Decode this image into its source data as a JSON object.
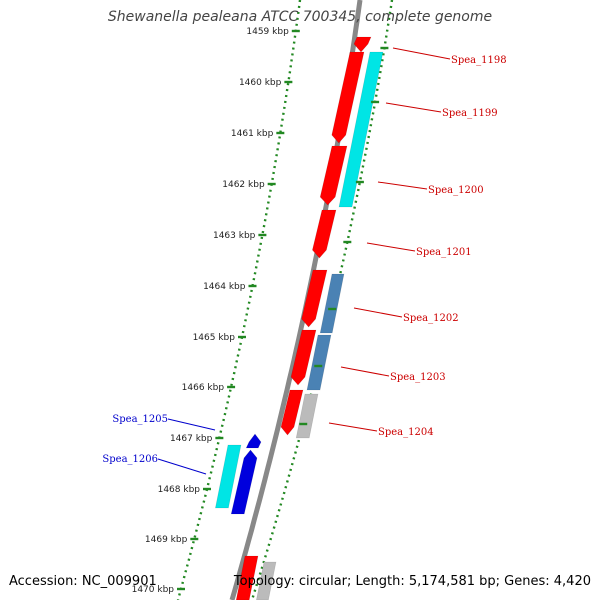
{
  "title": "Shewanella pealeana ATCC 700345, complete genome",
  "footer": {
    "accession": "Accession: NC_009901",
    "summary": "Topology: circular; Length: 5,174,581 bp; Genes: 4,420"
  },
  "colors": {
    "forward_gene": "#ff0000",
    "forward_label": "#cc0000",
    "reverse_gene": "#0000dd",
    "reverse_label": "#0000cc",
    "backbone": "#888888",
    "tick": "#228822",
    "cyan_feature": "#00e5e5",
    "steel_feature": "#4a82b4",
    "gray_feature": "#bbbbbb"
  },
  "scale_labels": [
    "1459 kbp",
    "1460 kbp",
    "1461 kbp",
    "1462 kbp",
    "1463 kbp",
    "1464 kbp",
    "1465 kbp",
    "1466 kbp",
    "1467 kbp",
    "1468 kbp",
    "1469 kbp",
    "1470 kbp"
  ],
  "forward_genes": [
    "Spea_1198",
    "Spea_1199",
    "Spea_1200",
    "Spea_1201",
    "Spea_1202",
    "Spea_1203",
    "Spea_1204"
  ],
  "reverse_genes": [
    "Spea_1205",
    "Spea_1206"
  ]
}
